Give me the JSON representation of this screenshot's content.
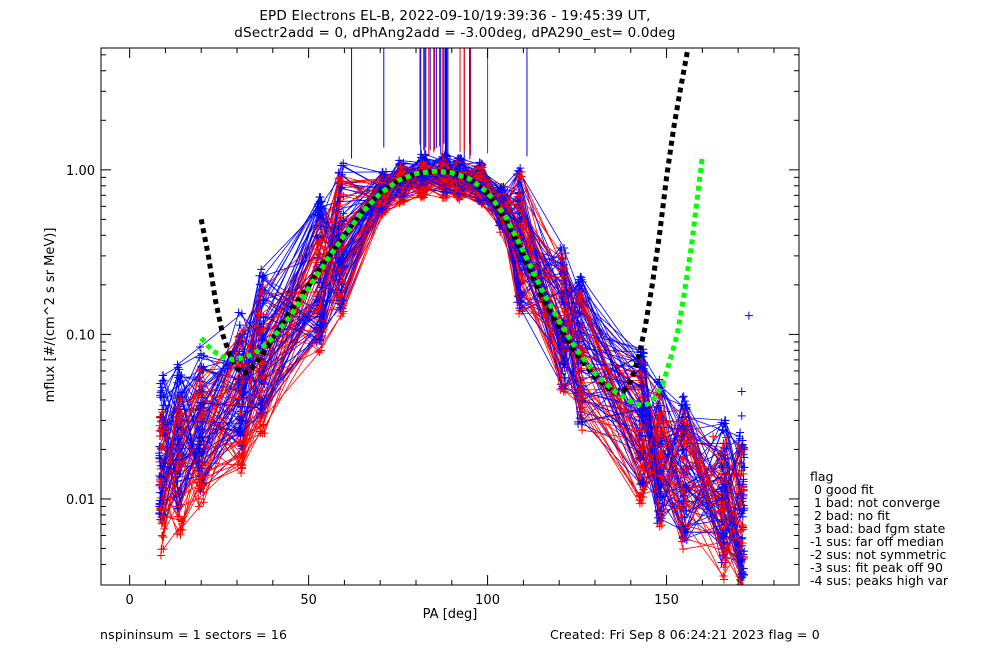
{
  "header": {
    "title_line1": "EPD Electrons EL-B, 2022-09-10/19:39:36 - 19:45:39 UT,",
    "title_line2": "dSectr2add = 0, dPhAng2add = -3.00deg, dPA290_est=   0.0deg"
  },
  "footer": {
    "left": "nspininsum =  1  sectors = 16",
    "right": "Created: Fri Sep  8 06:24:21 2023   flag = 0"
  },
  "legend": {
    "title": "flag",
    "items": [
      " 0 good fit",
      " 1 bad: not converge",
      " 2 bad: no fit",
      " 3 bad: bad fgm state",
      "-1 sus: far off median",
      "-2 sus: not symmetric",
      "-3 sus: fit peak off 90",
      "-4 sus: peaks high var"
    ]
  },
  "colors": {
    "red": "#ff0000",
    "blue": "#0000ff",
    "black_fit": "#000000",
    "green_fit": "#00ff00"
  },
  "chart_data": {
    "type": "line",
    "xlabel": "PA [deg]",
    "ylabel": "mflux [#/(cm^2 s sr MeV)]",
    "xlim": [
      -8,
      187
    ],
    "ylim": [
      0.003,
      5.5
    ],
    "yscale": "log",
    "x_ticks": [
      0,
      50,
      100,
      150
    ],
    "y_ticks": [
      0.01,
      0.1,
      1.0
    ],
    "y_tick_labels": [
      "0.01",
      "0.10",
      "1.00"
    ],
    "pa_bins": [
      9,
      14,
      20,
      31,
      37,
      53,
      59,
      71,
      76,
      82,
      88,
      92,
      98,
      104,
      109,
      121,
      126,
      143,
      148,
      155,
      166,
      171
    ],
    "series": [
      {
        "color": "red",
        "n_traces": 45,
        "median_profile": [
          0.012,
          0.016,
          0.022,
          0.04,
          0.07,
          0.2,
          0.35,
          0.7,
          0.82,
          0.88,
          0.88,
          0.86,
          0.8,
          0.55,
          0.35,
          0.12,
          0.07,
          0.025,
          0.018,
          0.013,
          0.009,
          0.008
        ]
      },
      {
        "color": "blue",
        "n_traces": 60,
        "median_profile": [
          0.02,
          0.024,
          0.03,
          0.05,
          0.09,
          0.25,
          0.4,
          0.75,
          0.88,
          0.95,
          0.95,
          0.92,
          0.85,
          0.6,
          0.38,
          0.13,
          0.08,
          0.03,
          0.02,
          0.015,
          0.011,
          0.009
        ]
      },
      {
        "color": "black_fit",
        "style": "dotted",
        "x": [
          20,
          22,
          24,
          26,
          28,
          30,
          32,
          34,
          37,
          40,
          45,
          50,
          55,
          60,
          65,
          70,
          75,
          80,
          85,
          90,
          95,
          100,
          105,
          110,
          115,
          120,
          125,
          130,
          135,
          138,
          140,
          142,
          144,
          146,
          148,
          150,
          152,
          154,
          156
        ],
        "y": [
          0.5,
          0.3,
          0.16,
          0.1,
          0.075,
          0.062,
          0.058,
          0.062,
          0.075,
          0.095,
          0.14,
          0.2,
          0.29,
          0.4,
          0.56,
          0.73,
          0.86,
          0.95,
          0.98,
          0.97,
          0.88,
          0.72,
          0.5,
          0.3,
          0.17,
          0.11,
          0.075,
          0.055,
          0.045,
          0.045,
          0.052,
          0.07,
          0.11,
          0.2,
          0.4,
          0.9,
          1.8,
          3.2,
          5.5
        ]
      },
      {
        "color": "green_fit",
        "style": "dotted",
        "x": [
          20,
          23,
          26,
          29,
          32,
          35,
          40,
          45,
          50,
          55,
          60,
          65,
          70,
          75,
          80,
          85,
          90,
          95,
          100,
          105,
          110,
          115,
          120,
          125,
          130,
          135,
          140,
          143,
          145,
          147,
          149,
          151,
          153,
          155,
          157,
          159,
          160
        ],
        "y": [
          0.095,
          0.08,
          0.073,
          0.07,
          0.072,
          0.077,
          0.095,
          0.13,
          0.19,
          0.28,
          0.4,
          0.55,
          0.72,
          0.86,
          0.95,
          0.98,
          0.96,
          0.88,
          0.73,
          0.52,
          0.32,
          0.19,
          0.12,
          0.08,
          0.058,
          0.046,
          0.039,
          0.037,
          0.038,
          0.042,
          0.05,
          0.07,
          0.1,
          0.18,
          0.35,
          0.8,
          1.2
        ]
      }
    ]
  }
}
